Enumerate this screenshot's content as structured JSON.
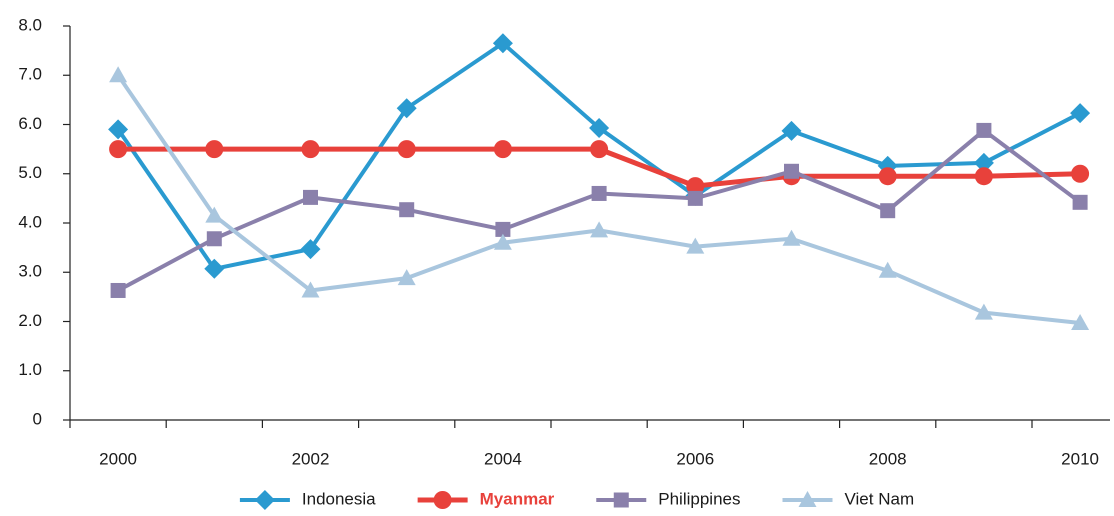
{
  "chart_data": {
    "type": "line",
    "categories": [
      "2000",
      null,
      "2002",
      null,
      "2004",
      null,
      "2006",
      null,
      "2008",
      null,
      "2010"
    ],
    "ylim": [
      0,
      8
    ],
    "yticks": [
      0,
      {
        "value": 1,
        "label": "1.0"
      },
      {
        "value": 2,
        "label": "2.0"
      },
      {
        "value": 3,
        "label": "3.0"
      },
      {
        "value": 4,
        "label": "4.0"
      },
      {
        "value": 5,
        "label": "5.0"
      },
      {
        "value": 6,
        "label": "6.0"
      },
      {
        "value": 7,
        "label": "7.0"
      },
      {
        "value": 8,
        "label": "8.0"
      }
    ],
    "legend": "bottom",
    "series": [
      {
        "name": "Indonesia",
        "color": "#2a9ad0",
        "marker": "diamond",
        "values": [
          5.9,
          3.07,
          3.47,
          6.33,
          7.65,
          5.93,
          4.55,
          5.87,
          5.16,
          5.22,
          6.23
        ]
      },
      {
        "name": "Myanmar",
        "color": "#e8413b",
        "marker": "circle",
        "highlight": true,
        "values": [
          5.5,
          5.5,
          5.5,
          5.5,
          5.5,
          5.5,
          4.75,
          4.95,
          4.95,
          4.95,
          5.0
        ]
      },
      {
        "name": "Philippines",
        "color": "#8a80ab",
        "marker": "square",
        "values": [
          2.63,
          3.68,
          4.52,
          4.27,
          3.87,
          4.6,
          4.5,
          5.05,
          4.25,
          5.88,
          4.42
        ]
      },
      {
        "name": "Viet Nam",
        "color": "#a9c6de",
        "marker": "triangle",
        "values": [
          7.0,
          4.15,
          2.63,
          2.88,
          3.6,
          3.85,
          3.52,
          3.68,
          3.03,
          2.18,
          1.97
        ]
      }
    ]
  }
}
